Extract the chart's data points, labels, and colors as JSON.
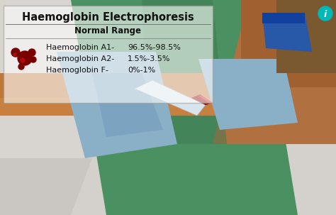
{
  "title": "Haemoglobin Electrophoresis",
  "subtitle": "Normal Range",
  "rows": [
    {
      "label": "Haemoglobin A1-",
      "value": "96.5%-98.5%"
    },
    {
      "label": "Haemoglobin A2-",
      "value": "1.5%-3.5%"
    },
    {
      "label": "Haemoglobin F-",
      "value": "0%-1%"
    }
  ],
  "title_color": "#111111",
  "label_color": "#111111",
  "blood_red": "#7a0000",
  "blood_bright": "#cc1111",
  "teal_icon_color": "#00b8b8",
  "figwidth": 4.74,
  "figheight": 3.03,
  "dpi": 100,
  "bg_gray": "#d4d0cc",
  "bg_green_scrubs": "#4a9060",
  "bg_green_scrubs2": "#3d7a52",
  "bg_skin_left": "#c07838",
  "bg_skin_right": "#b86e30",
  "bg_skin_arm": "#c88040",
  "blue_glove": "#8ab0c8",
  "blue_glove2": "#7098b8",
  "brown_sleeve": "#7a5830",
  "blue_band": "#2858a8"
}
